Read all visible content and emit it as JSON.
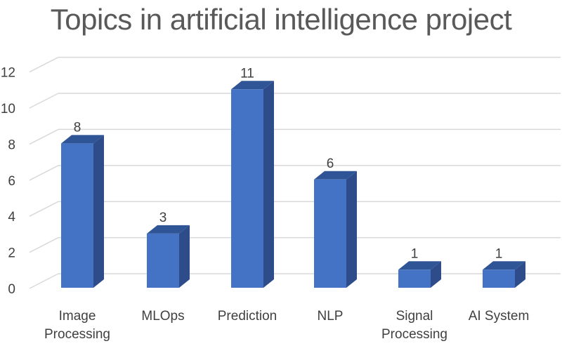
{
  "chart_data": {
    "type": "bar",
    "style": "3d-column",
    "title": "Topics in artificial intelligence project",
    "xlabel": "",
    "ylabel": "",
    "categories": [
      "Image Processing",
      "MLOps",
      "Prediction",
      "NLP",
      "Signal Processing",
      "AI System"
    ],
    "category_lines": [
      [
        "Image",
        "Processing"
      ],
      [
        "MLOps"
      ],
      [
        "Prediction"
      ],
      [
        "NLP"
      ],
      [
        "Signal",
        "Processing"
      ],
      [
        "AI System"
      ]
    ],
    "values": [
      8,
      3,
      11,
      6,
      1,
      1
    ],
    "ylim": [
      0,
      12
    ],
    "yticks": [
      0,
      2,
      4,
      6,
      8,
      10,
      12
    ],
    "grid": true,
    "legend": null,
    "data_labels": true,
    "colors": {
      "bar_front": "#4472C4",
      "bar_side": "#2E4C8A",
      "bar_top": "#2F5597",
      "grid": "#D9D9D9",
      "text": "#404040",
      "title": "#595959"
    }
  }
}
